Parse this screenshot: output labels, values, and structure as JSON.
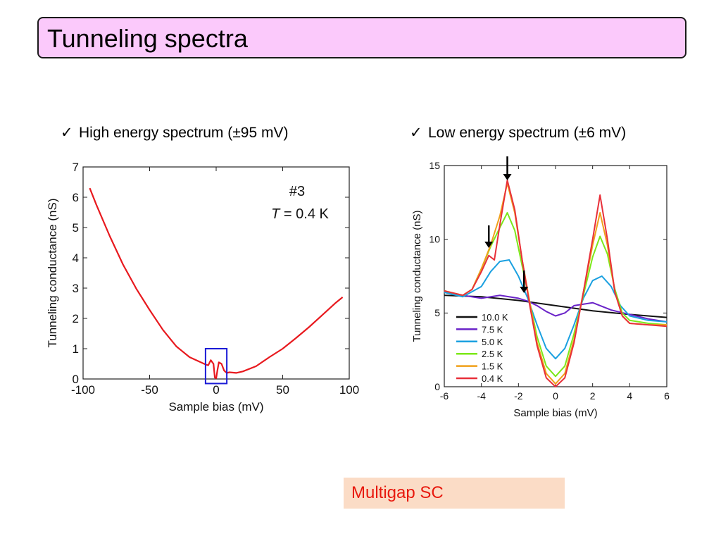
{
  "slide": {
    "title": "Tunneling spectra",
    "bullet_left": "High energy spectrum (±95 mV)",
    "bullet_right": "Low energy spectrum (±6 mV)",
    "bullet_mark": "✓",
    "footer": "Multigap SC"
  },
  "colors": {
    "title_bg": "#fbc9fb",
    "footer_bg": "#fbdcc6",
    "footer_text": "#e8190e",
    "highlight_box": "#1a1ad6"
  },
  "chart_data": [
    {
      "type": "line",
      "title": "",
      "annotation_lines": [
        "#3",
        "T = 0.4 K"
      ],
      "annotation_italic": "T",
      "annotation_rest": " = 0.4 K",
      "xlabel": "Sample bias (mV)",
      "ylabel": "Tunneling conductance (nS)",
      "xlim": [
        -100,
        100
      ],
      "ylim": [
        0,
        7
      ],
      "xticks": [
        -100,
        -50,
        0,
        50,
        100
      ],
      "yticks": [
        0,
        1,
        2,
        3,
        4,
        5,
        6,
        7
      ],
      "grid": false,
      "highlight_range": {
        "x": [
          -8,
          8
        ],
        "y": [
          -0.15,
          1.0
        ]
      },
      "series": [
        {
          "color": "#e8191e",
          "x": [
            -95,
            -90,
            -80,
            -70,
            -60,
            -50,
            -40,
            -30,
            -20,
            -10,
            -8,
            -6,
            -4,
            -2,
            -1,
            0,
            1,
            2,
            4,
            6,
            8,
            10,
            15,
            20,
            30,
            40,
            50,
            60,
            70,
            80,
            90,
            95
          ],
          "y": [
            6.3,
            5.75,
            4.72,
            3.78,
            2.98,
            2.28,
            1.62,
            1.08,
            0.72,
            0.52,
            0.48,
            0.45,
            0.62,
            0.5,
            0.05,
            0.02,
            0.3,
            0.55,
            0.5,
            0.28,
            0.2,
            0.22,
            0.2,
            0.25,
            0.42,
            0.72,
            1.0,
            1.35,
            1.72,
            2.12,
            2.52,
            2.7
          ]
        }
      ]
    },
    {
      "type": "line",
      "title": "",
      "xlabel": "Sample bias (mV)",
      "ylabel": "Tunneling conductance (nS)",
      "xlim": [
        -6,
        6
      ],
      "ylim": [
        0,
        15
      ],
      "xticks": [
        -6,
        -4,
        -2,
        0,
        2,
        4,
        6
      ],
      "yticks": [
        0,
        5,
        10,
        15
      ],
      "grid": false,
      "legend": "lower-left",
      "arrows_x": [
        -3.6,
        -2.6,
        -1.7
      ],
      "series": [
        {
          "name": "10.0 K",
          "color": "#111111",
          "x": [
            -6,
            -4,
            -2,
            0,
            2,
            4,
            6
          ],
          "y": [
            6.2,
            6.1,
            5.85,
            5.5,
            5.15,
            4.9,
            4.7
          ]
        },
        {
          "name": "7.5 K",
          "color": "#6a23c8",
          "x": [
            -6,
            -5,
            -4,
            -3,
            -2,
            -1.5,
            -1,
            -0.5,
            0,
            0.5,
            1,
            2,
            3,
            4,
            5,
            6
          ],
          "y": [
            6.4,
            6.2,
            6.0,
            6.2,
            6.0,
            5.8,
            5.5,
            5.1,
            4.8,
            5.0,
            5.5,
            5.7,
            5.2,
            4.9,
            4.6,
            4.4
          ]
        },
        {
          "name": "5.0 K",
          "color": "#1aa0e0",
          "x": [
            -6,
            -5,
            -4,
            -3.5,
            -3,
            -2.5,
            -2,
            -1.5,
            -1,
            -0.5,
            0,
            0.5,
            1,
            1.5,
            2,
            2.5,
            3,
            3.5,
            4,
            5,
            6
          ],
          "y": [
            6.4,
            6.1,
            6.8,
            7.8,
            8.5,
            8.6,
            7.5,
            6.0,
            4.2,
            2.6,
            1.9,
            2.6,
            4.2,
            6.0,
            7.2,
            7.5,
            6.8,
            5.5,
            4.8,
            4.5,
            4.4
          ]
        },
        {
          "name": "2.5 K",
          "color": "#7ce81a",
          "x": [
            -6,
            -5,
            -4.5,
            -4,
            -3.5,
            -3,
            -2.6,
            -2.2,
            -1.8,
            -1.4,
            -1,
            -0.5,
            0,
            0.5,
            1,
            1.5,
            2,
            2.4,
            2.8,
            3.2,
            3.6,
            4,
            5,
            6
          ],
          "y": [
            6.5,
            6.2,
            6.6,
            8.0,
            9.5,
            10.8,
            11.8,
            10.6,
            8.2,
            5.8,
            3.4,
            1.4,
            0.7,
            1.4,
            3.6,
            6.2,
            8.8,
            10.2,
            9.0,
            6.6,
            5.0,
            4.5,
            4.3,
            4.2
          ]
        },
        {
          "name": "1.5 K",
          "color": "#f0a01a",
          "x": [
            -6,
            -5,
            -4.5,
            -4,
            -3.5,
            -3,
            -2.6,
            -2.2,
            -1.8,
            -1.4,
            -1,
            -0.5,
            0,
            0.5,
            1,
            1.5,
            2,
            2.4,
            2.8,
            3.2,
            3.6,
            4,
            5,
            6
          ],
          "y": [
            6.5,
            6.2,
            6.6,
            8.0,
            9.6,
            11.6,
            13.8,
            11.8,
            8.6,
            5.8,
            3.0,
            0.9,
            0.2,
            0.9,
            3.2,
            6.4,
            9.6,
            11.8,
            9.6,
            6.4,
            4.8,
            4.3,
            4.2,
            4.2
          ]
        },
        {
          "name": "0.4 K",
          "color": "#e8303a",
          "x": [
            -6,
            -5,
            -4.5,
            -4,
            -3.6,
            -3.3,
            -3,
            -2.6,
            -2.2,
            -1.8,
            -1.4,
            -1,
            -0.5,
            0,
            0.5,
            1,
            1.5,
            2,
            2.4,
            2.8,
            3.2,
            3.6,
            4,
            5,
            6
          ],
          "y": [
            6.5,
            6.2,
            6.6,
            7.8,
            8.9,
            8.6,
            11.0,
            14.0,
            12.0,
            8.6,
            5.6,
            2.8,
            0.6,
            0.0,
            0.6,
            3.0,
            6.4,
            10.0,
            13.0,
            10.0,
            6.4,
            4.8,
            4.3,
            4.2,
            4.1
          ]
        }
      ]
    }
  ]
}
